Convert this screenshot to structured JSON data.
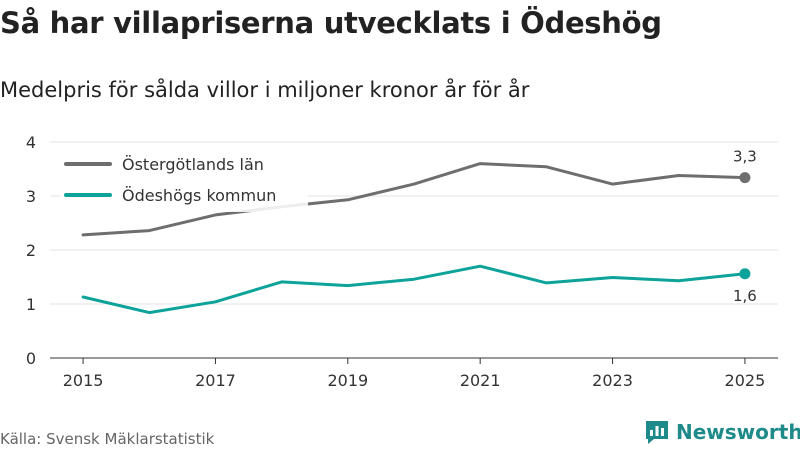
{
  "title": "Så har villapriserna utvecklats i Ödeshög",
  "subtitle": "Medelpris för sålda villor i miljoner kronor år för år",
  "source": "Källa: Svensk Mäklarstatistik",
  "brand": {
    "name": "Newsworthy",
    "icon": "bar-chart-logo-icon",
    "color": "#1f8a8a"
  },
  "chart_data": {
    "type": "line",
    "title": "Så har villapriserna utvecklats i Ödeshög",
    "subtitle": "Medelpris för sålda villor i miljoner kronor år för år",
    "xlabel": "",
    "ylabel": "",
    "x": [
      2015,
      2016,
      2017,
      2018,
      2019,
      2020,
      2021,
      2022,
      2023,
      2024,
      2025
    ],
    "xticks": [
      "2015",
      "2017",
      "2019",
      "2021",
      "2023",
      "2025"
    ],
    "yticks": [
      "0",
      "1",
      "2",
      "3",
      "4"
    ],
    "ylim": [
      0,
      4
    ],
    "xlim": [
      2014.5,
      2025.5
    ],
    "grid": true,
    "legend": "top-left",
    "series": [
      {
        "name": "Östergötlands län",
        "color": "#6e6e6e",
        "values": [
          2.28,
          2.36,
          2.65,
          2.8,
          2.93,
          3.22,
          3.6,
          3.54,
          3.22,
          3.38,
          3.34
        ],
        "end_label": "3,3"
      },
      {
        "name": "Ödeshögs kommun",
        "color": "#0da39a",
        "values": [
          1.13,
          0.84,
          1.04,
          1.41,
          1.34,
          1.46,
          1.7,
          1.39,
          1.49,
          1.43,
          1.56
        ],
        "end_label": "1,6"
      }
    ]
  }
}
